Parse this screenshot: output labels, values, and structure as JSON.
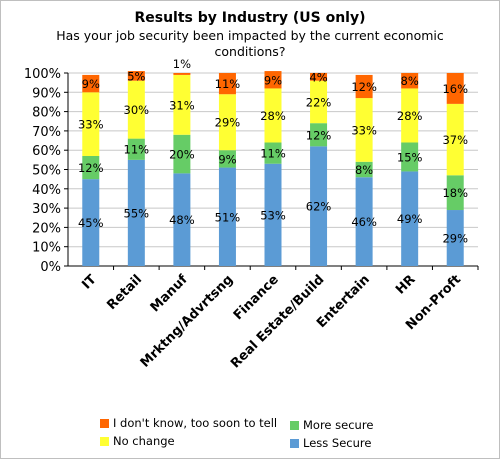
{
  "chart_data": {
    "type": "bar",
    "stacked": true,
    "title": "Results by Industry (US only)",
    "subtitle": "Has your job security been impacted by the current economic conditions?",
    "categories": [
      "IT",
      "Retail",
      "Manuf",
      "Mrktng/Advrtsng",
      "Finance",
      "Real Estate/Build",
      "Entertain",
      "HR",
      "Non-Proft"
    ],
    "series": [
      {
        "name": "Less Secure",
        "color": "#5b9bd5",
        "values": [
          45,
          55,
          48,
          51,
          53,
          62,
          46,
          49,
          29
        ],
        "labels": [
          "45%",
          "55%",
          "48%",
          "51%",
          "53%",
          "62%",
          "46%",
          "49%",
          "29%"
        ]
      },
      {
        "name": "More secure",
        "color": "#66cc66",
        "values": [
          12,
          11,
          20,
          9,
          11,
          12,
          8,
          15,
          18
        ],
        "labels": [
          "12%",
          "11%",
          "20%",
          "9%",
          "11%",
          "12%",
          "8%",
          "15%",
          "18%"
        ]
      },
      {
        "name": "No change",
        "color": "#ffff33",
        "values": [
          33,
          30,
          31,
          29,
          28,
          22,
          33,
          28,
          37
        ],
        "labels": [
          "33%",
          "30%",
          "31%",
          "29%",
          "28%",
          "22%",
          "33%",
          "28%",
          "37%"
        ]
      },
      {
        "name": "I don't know, too soon to tell",
        "color": "#ff6600",
        "values": [
          9,
          5,
          1,
          11,
          9,
          4,
          12,
          8,
          16
        ],
        "labels": [
          "9%",
          "5%",
          "1%",
          "11%",
          "9%",
          "4%",
          "12%",
          "8%",
          "16%"
        ]
      }
    ],
    "yticks": [
      "0%",
      "10%",
      "20%",
      "30%",
      "40%",
      "50%",
      "60%",
      "70%",
      "80%",
      "90%",
      "100%"
    ],
    "ylim": [
      0,
      100
    ],
    "grid": true,
    "legend_position": "bottom"
  },
  "legend": {
    "dont_know": "I don't know, too soon to tell",
    "no_change": "No change",
    "more_secure": "More secure",
    "less_secure": "Less Secure"
  }
}
